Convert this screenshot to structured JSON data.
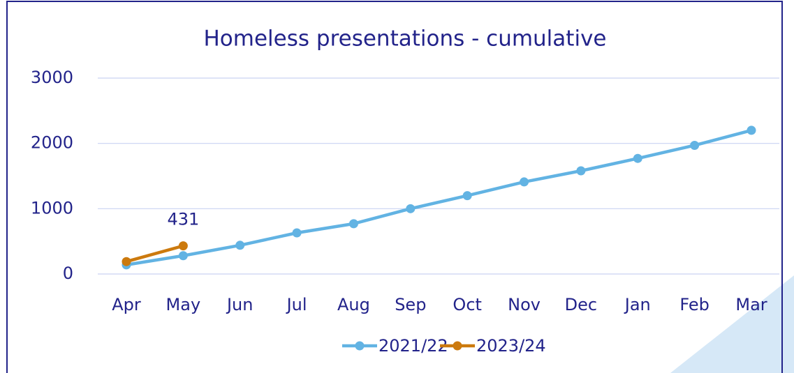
{
  "chart_data": {
    "type": "line",
    "title": "Homeless presentations - cumulative",
    "categories": [
      "Apr",
      "May",
      "Jun",
      "Jul",
      "Aug",
      "Sep",
      "Oct",
      "Nov",
      "Dec",
      "Jan",
      "Feb",
      "Mar"
    ],
    "series": [
      {
        "name": "2021/22",
        "color": "#62b3e3",
        "values": [
          140,
          280,
          440,
          630,
          770,
          1000,
          1200,
          1410,
          1580,
          1770,
          1970,
          2200
        ]
      },
      {
        "name": "2023/24",
        "color": "#cc7a0e",
        "values": [
          190,
          431,
          null,
          null,
          null,
          null,
          null,
          null,
          null,
          null,
          null,
          null
        ],
        "data_labels": [
          1
        ]
      }
    ],
    "ylim": [
      0,
      3000
    ],
    "yticks": [
      0,
      1000,
      2000,
      3000
    ],
    "grid": true,
    "legend": "bottom"
  }
}
